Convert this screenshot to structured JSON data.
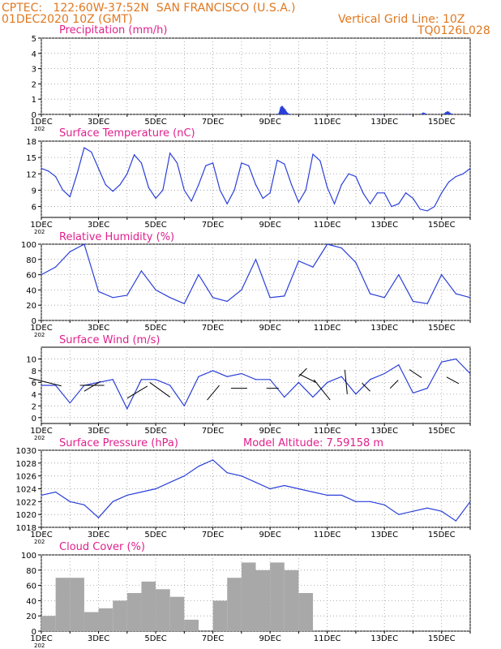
{
  "header": {
    "line1": "CPTEC:   122:60W-37:52N  SAN FRANCISCO (U.S.A.)",
    "line2": "01DEC2020 10Z (GMT)",
    "right1": "Vertical Grid Line: 10Z",
    "right2": "TQ0126L028"
  },
  "colors": {
    "header": "#e07820",
    "title": "#e0208c",
    "line": "#2a3fd8",
    "cloud": "#a8a8a8",
    "grid": "#9a9a9a",
    "arrow": "#000000"
  },
  "x_ticks": [
    "1DEC",
    "3DEC",
    "5DEC",
    "7DEC",
    "9DEC",
    "11DEC",
    "13DEC",
    "15DEC"
  ],
  "x_tick_prefix": "202",
  "chart_data": [
    {
      "id": "precip",
      "type": "bar",
      "title": "Precipitation (mm/h)",
      "ylim": [
        0,
        5
      ],
      "yticks": [
        0,
        1,
        2,
        3,
        4,
        5
      ],
      "x_unit": "days since 01DEC2020 00Z",
      "x": [
        8.3,
        8.32,
        8.34,
        8.36,
        8.38,
        8.4,
        8.42,
        8.44,
        8.46,
        8.48,
        8.5,
        8.52,
        8.54,
        8.56,
        8.58,
        8.6,
        8.62,
        8.64,
        8.66,
        8.68,
        11.8,
        12.8,
        13.3,
        13.35,
        13.4,
        13.45,
        14.1,
        14.15,
        14.2,
        14.25,
        14.3,
        14.35
      ],
      "values": [
        0.05,
        0.1,
        0.2,
        0.35,
        0.5,
        0.45,
        0.55,
        0.5,
        0.45,
        0.4,
        0.3,
        0.35,
        0.25,
        0.2,
        0.15,
        0.1,
        0.08,
        0.05,
        0.04,
        0.03,
        0.03,
        0.03,
        0.05,
        0.12,
        0.1,
        0.05,
        0.08,
        0.15,
        0.2,
        0.18,
        0.1,
        0.05
      ]
    },
    {
      "id": "temp",
      "type": "line",
      "title": "Surface Temperature (nC)",
      "ylim": [
        4,
        18
      ],
      "yticks": [
        6,
        9,
        12,
        15,
        18
      ],
      "x": [
        0,
        0.25,
        0.5,
        0.75,
        1.0,
        1.25,
        1.5,
        1.75,
        2.0,
        2.25,
        2.5,
        2.75,
        3.0,
        3.25,
        3.5,
        3.75,
        4.0,
        4.25,
        4.5,
        4.75,
        5.0,
        5.25,
        5.5,
        5.75,
        6.0,
        6.25,
        6.5,
        6.75,
        7.0,
        7.25,
        7.5,
        7.75,
        8.0,
        8.25,
        8.5,
        8.75,
        9.0,
        9.25,
        9.5,
        9.75,
        10.0,
        10.25,
        10.5,
        10.75,
        11.0,
        11.25,
        11.5,
        11.75,
        12.0,
        12.25,
        12.5,
        12.75,
        13.0,
        13.25,
        13.5,
        13.75,
        14.0,
        14.25,
        14.5,
        14.75,
        15.0
      ],
      "values": [
        13,
        12.5,
        11.5,
        9,
        7.8,
        12,
        16.8,
        16,
        13,
        10,
        8.8,
        10,
        12,
        15.5,
        14,
        9.5,
        7.5,
        9,
        15.8,
        14,
        9,
        7,
        10,
        13.5,
        14,
        9,
        6.5,
        9,
        14,
        13.5,
        10,
        7.5,
        8.5,
        14.5,
        13.8,
        10,
        6.8,
        9,
        15.6,
        14.4,
        9.5,
        6.5,
        10,
        12,
        11.5,
        8.5,
        6.5,
        8.5,
        8.5,
        6,
        6.5,
        8.5,
        7.5,
        5.5,
        5.2,
        6,
        8.5,
        10.5,
        11.5,
        12,
        13
      ]
    },
    {
      "id": "rh",
      "type": "line",
      "title": "Relative Humidity (%)",
      "ylim": [
        0,
        100
      ],
      "yticks": [
        0,
        20,
        40,
        60,
        80,
        100
      ],
      "x": [
        0,
        0.5,
        1.0,
        1.5,
        2.0,
        2.5,
        3.0,
        3.5,
        4.0,
        4.5,
        5.0,
        5.5,
        6.0,
        6.5,
        7.0,
        7.5,
        8.0,
        8.5,
        9.0,
        9.5,
        10.0,
        10.5,
        11.0,
        11.5,
        12.0,
        12.5,
        13.0,
        13.5,
        14.0,
        14.5,
        15.0
      ],
      "values": [
        60,
        70,
        90,
        100,
        38,
        30,
        33,
        65,
        40,
        30,
        22,
        60,
        30,
        25,
        40,
        80,
        30,
        32,
        78,
        70,
        100,
        95,
        76,
        35,
        30,
        60,
        25,
        22,
        60,
        35,
        30
      ]
    },
    {
      "id": "wind",
      "type": "line",
      "title": "Surface Wind (m/s)",
      "ylim": [
        -1,
        12
      ],
      "yticks": [
        0,
        2,
        4,
        6,
        8,
        10
      ],
      "x": [
        0,
        0.5,
        1.0,
        1.5,
        2.0,
        2.5,
        3.0,
        3.5,
        4.0,
        4.5,
        5.0,
        5.5,
        6.0,
        6.5,
        7.0,
        7.5,
        8.0,
        8.5,
        9.0,
        9.5,
        10.0,
        10.5,
        11.0,
        11.5,
        12.0,
        12.5,
        13.0,
        13.5,
        14.0,
        14.5,
        15.0
      ],
      "values": [
        5.5,
        5.5,
        2.5,
        5.5,
        6,
        6.5,
        1.5,
        6.5,
        6.5,
        5.5,
        2,
        7,
        8,
        7,
        7.5,
        6.5,
        6.5,
        3.5,
        6,
        3.5,
        6,
        7,
        4,
        6.5,
        7.5,
        9,
        4.2,
        5,
        9.5,
        10,
        7.5
      ]
    },
    {
      "id": "pressure",
      "type": "line",
      "title": "Surface Pressure (hPa)",
      "extra": "Model Altitude: 7.59158 m",
      "ylim": [
        1018,
        1030
      ],
      "yticks": [
        1018,
        1020,
        1022,
        1024,
        1026,
        1028,
        1030
      ],
      "x": [
        0,
        0.5,
        1.0,
        1.5,
        2.0,
        2.5,
        3.0,
        3.5,
        4.0,
        4.5,
        5.0,
        5.5,
        6.0,
        6.5,
        7.0,
        7.5,
        8.0,
        8.5,
        9.0,
        9.5,
        10.0,
        10.5,
        11.0,
        11.5,
        12.0,
        12.5,
        13.0,
        13.5,
        14.0,
        14.5,
        15.0
      ],
      "values": [
        1023,
        1023.5,
        1022,
        1021.5,
        1019.5,
        1022,
        1023,
        1023.5,
        1024,
        1025,
        1026,
        1027.5,
        1028.5,
        1026.5,
        1026,
        1025,
        1024,
        1024.5,
        1024,
        1023.5,
        1023,
        1023,
        1022,
        1022,
        1021.5,
        1020,
        1020.5,
        1021,
        1020.5,
        1019,
        1022
      ]
    },
    {
      "id": "cloud",
      "type": "area",
      "title": "Cloud Cover (%)",
      "ylim": [
        0,
        100
      ],
      "yticks": [
        0,
        20,
        40,
        60,
        80,
        100
      ],
      "x": [
        0,
        0.5,
        1.0,
        1.5,
        2.0,
        2.5,
        3.0,
        3.5,
        4.0,
        4.5,
        5.0,
        5.5,
        6.0,
        6.5,
        7.0,
        7.5,
        8.0,
        8.5,
        9.0,
        9.5,
        10.0,
        10.5,
        11.0,
        11.5,
        12.0,
        12.5,
        13.0,
        13.5,
        14.0,
        14.5,
        15.0
      ],
      "values": [
        20,
        70,
        70,
        25,
        30,
        40,
        50,
        65,
        55,
        45,
        15,
        0,
        40,
        70,
        90,
        80,
        90,
        80,
        50,
        0,
        0,
        0,
        0,
        0,
        0,
        0,
        0,
        0,
        0,
        0,
        0
      ]
    }
  ]
}
